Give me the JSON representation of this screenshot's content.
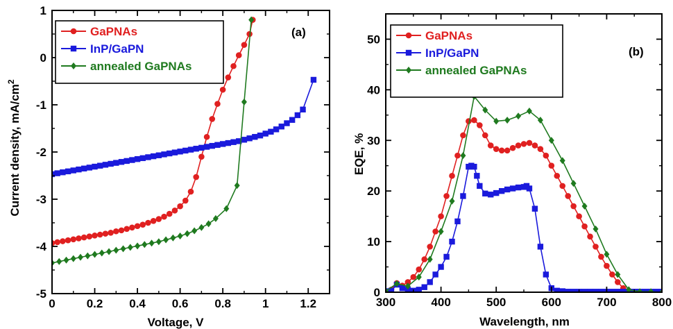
{
  "chart_data": [
    {
      "type": "line",
      "panel_label": "(a)",
      "xlabel": "Voltage, V",
      "ylabel": "Current density, mA/cm",
      "ylabel_superscript": "2",
      "xlim": [
        0,
        1.3
      ],
      "ylim": [
        -5,
        1
      ],
      "xticks": [
        "0",
        "0.2",
        "0.4",
        "0.6",
        "0.8",
        "1",
        "1.2"
      ],
      "xtick_values": [
        0,
        0.2,
        0.4,
        0.6,
        0.8,
        1.0,
        1.2
      ],
      "yticks": [
        "-5",
        "-4",
        "-3",
        "-2",
        "-1",
        "0",
        "1"
      ],
      "ytick_values": [
        -5,
        -4,
        -3,
        -2,
        -1,
        0,
        1
      ],
      "legend_position": "top-left",
      "series": [
        {
          "name": "GaPNAs",
          "color": "#e02020",
          "marker": "circle",
          "x": [
            0.0,
            0.025,
            0.05,
            0.075,
            0.1,
            0.125,
            0.15,
            0.175,
            0.2,
            0.225,
            0.25,
            0.275,
            0.3,
            0.325,
            0.35,
            0.375,
            0.4,
            0.425,
            0.45,
            0.475,
            0.5,
            0.525,
            0.55,
            0.575,
            0.6,
            0.625,
            0.65,
            0.675,
            0.7,
            0.725,
            0.75,
            0.775,
            0.8,
            0.825,
            0.85,
            0.875,
            0.9,
            0.925,
            0.94
          ],
          "y": [
            -3.93,
            -3.91,
            -3.89,
            -3.87,
            -3.85,
            -3.83,
            -3.81,
            -3.79,
            -3.77,
            -3.75,
            -3.73,
            -3.71,
            -3.68,
            -3.66,
            -3.63,
            -3.6,
            -3.57,
            -3.54,
            -3.5,
            -3.46,
            -3.42,
            -3.37,
            -3.31,
            -3.24,
            -3.15,
            -3.03,
            -2.84,
            -2.53,
            -2.1,
            -1.68,
            -1.3,
            -0.98,
            -0.68,
            -0.42,
            -0.18,
            0.05,
            0.27,
            0.5,
            0.8
          ]
        },
        {
          "name": "InP/GaPN",
          "color": "#1a1adc",
          "marker": "square",
          "x": [
            0.0,
            0.025,
            0.05,
            0.075,
            0.1,
            0.125,
            0.15,
            0.175,
            0.2,
            0.225,
            0.25,
            0.275,
            0.3,
            0.325,
            0.35,
            0.375,
            0.4,
            0.425,
            0.45,
            0.475,
            0.5,
            0.525,
            0.55,
            0.575,
            0.6,
            0.625,
            0.65,
            0.675,
            0.7,
            0.725,
            0.75,
            0.775,
            0.8,
            0.825,
            0.85,
            0.875,
            0.9,
            0.925,
            0.95,
            0.975,
            1.0,
            1.025,
            1.05,
            1.075,
            1.1,
            1.125,
            1.15,
            1.175,
            1.225
          ],
          "y": [
            -2.47,
            -2.45,
            -2.43,
            -2.41,
            -2.39,
            -2.37,
            -2.35,
            -2.33,
            -2.31,
            -2.29,
            -2.27,
            -2.25,
            -2.23,
            -2.21,
            -2.19,
            -2.17,
            -2.15,
            -2.13,
            -2.11,
            -2.09,
            -2.07,
            -2.05,
            -2.03,
            -2.01,
            -1.99,
            -1.97,
            -1.95,
            -1.93,
            -1.91,
            -1.89,
            -1.87,
            -1.85,
            -1.83,
            -1.81,
            -1.79,
            -1.77,
            -1.74,
            -1.71,
            -1.68,
            -1.65,
            -1.61,
            -1.57,
            -1.52,
            -1.46,
            -1.39,
            -1.32,
            -1.22,
            -1.1,
            -0.47
          ]
        },
        {
          "name": "annealed GaPNAs",
          "color": "#1f7a1f",
          "marker": "diamond",
          "x": [
            0.0,
            0.0333,
            0.0667,
            0.1,
            0.1333,
            0.1667,
            0.2,
            0.2333,
            0.2667,
            0.3,
            0.3333,
            0.3667,
            0.4,
            0.4333,
            0.4667,
            0.5,
            0.5333,
            0.5667,
            0.6,
            0.6333,
            0.6667,
            0.7,
            0.7333,
            0.7667,
            0.8167,
            0.8667,
            0.9,
            0.9333
          ],
          "y": [
            -4.35,
            -4.32,
            -4.29,
            -4.26,
            -4.23,
            -4.2,
            -4.17,
            -4.14,
            -4.11,
            -4.08,
            -4.05,
            -4.02,
            -3.99,
            -3.96,
            -3.93,
            -3.9,
            -3.86,
            -3.82,
            -3.78,
            -3.73,
            -3.67,
            -3.6,
            -3.52,
            -3.41,
            -3.2,
            -2.71,
            -0.94,
            0.8
          ]
        }
      ]
    },
    {
      "type": "line",
      "panel_label": "(b)",
      "xlabel": "Wavelength, nm",
      "ylabel": "EQE, %",
      "xlim": [
        300,
        800
      ],
      "ylim": [
        0,
        55
      ],
      "xticks": [
        "300",
        "400",
        "500",
        "600",
        "700",
        "800"
      ],
      "xtick_values": [
        300,
        400,
        500,
        600,
        700,
        800
      ],
      "yticks": [
        "0",
        "10",
        "20",
        "30",
        "40",
        "50"
      ],
      "ytick_values": [
        0,
        10,
        20,
        30,
        40,
        50
      ],
      "legend_position": "top-left",
      "series": [
        {
          "name": "GaPNAs",
          "color": "#e02020",
          "marker": "circle",
          "x": [
            300,
            310,
            320,
            330,
            340,
            350,
            360,
            370,
            380,
            390,
            400,
            410,
            420,
            430,
            440,
            450,
            460,
            470,
            480,
            490,
            500,
            510,
            520,
            530,
            540,
            550,
            560,
            570,
            580,
            590,
            600,
            610,
            620,
            630,
            640,
            650,
            660,
            670,
            680,
            690,
            700,
            710,
            720,
            730,
            740,
            750,
            760,
            770,
            780,
            790,
            800
          ],
          "y": [
            0.2,
            0.5,
            1.8,
            1.3,
            2,
            3,
            4.5,
            6.5,
            9,
            12,
            15,
            19,
            23,
            27,
            31,
            33.8,
            34,
            33,
            31,
            29,
            28.3,
            28,
            28,
            28.5,
            29,
            29.3,
            29.5,
            29,
            28.3,
            27,
            25,
            23,
            21,
            19,
            17,
            15,
            13,
            11,
            9,
            7,
            5.2,
            3.5,
            2,
            0.8,
            0.3,
            0.1,
            0,
            0,
            0,
            0,
            0
          ]
        },
        {
          "name": "InP/GaPN",
          "color": "#1a1adc",
          "marker": "square",
          "x": [
            300,
            310,
            320,
            330,
            340,
            350,
            360,
            370,
            380,
            390,
            400,
            410,
            420,
            430,
            440,
            450,
            455,
            460,
            465,
            470,
            480,
            490,
            500,
            510,
            520,
            530,
            540,
            550,
            555,
            560,
            570,
            580,
            590,
            600,
            610,
            620,
            630,
            640,
            650,
            660,
            670,
            680,
            690,
            700,
            710,
            720,
            730,
            740,
            750,
            760,
            770,
            780,
            790,
            800
          ],
          "y": [
            0.2,
            0.3,
            1.5,
            0.8,
            0.5,
            0.3,
            0.5,
            1,
            2,
            3.5,
            5,
            7,
            10,
            14,
            19,
            24.8,
            25,
            24.8,
            23,
            21,
            19.5,
            19.3,
            19.6,
            20,
            20.3,
            20.5,
            20.7,
            20.8,
            21,
            20.5,
            16.5,
            9,
            3.5,
            0.8,
            0.3,
            0.2,
            0.1,
            0.1,
            0.1,
            0.1,
            0.1,
            0.1,
            0.1,
            0.1,
            0.1,
            0.1,
            0.1,
            0.1,
            0.1,
            0.1,
            0.1,
            0.1,
            0.1,
            0.1
          ]
        },
        {
          "name": "annealed GaPNAs",
          "color": "#1f7a1f",
          "marker": "diamond",
          "x": [
            300,
            320,
            340,
            360,
            380,
            400,
            420,
            440,
            460,
            480,
            500,
            520,
            540,
            560,
            580,
            600,
            620,
            640,
            660,
            680,
            700,
            720,
            740,
            760,
            780,
            800
          ],
          "y": [
            0.2,
            1.7,
            1.2,
            3,
            6.5,
            12,
            18,
            27,
            38.7,
            36,
            33.8,
            34,
            34.8,
            35.8,
            34,
            30,
            26,
            21.5,
            17,
            12.5,
            7.5,
            3.5,
            0.5,
            0.1,
            0.1,
            0
          ]
        }
      ]
    }
  ]
}
